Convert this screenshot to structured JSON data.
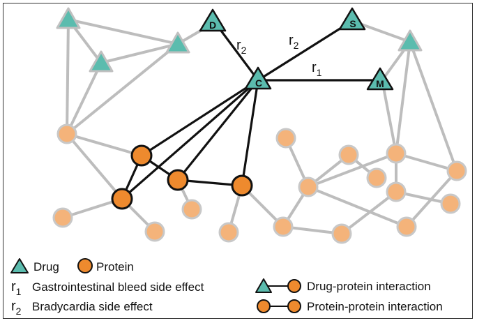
{
  "colors": {
    "drug_fill": "#5bbcae",
    "protein_fill_highlight": "#ee8a2e",
    "protein_fill_muted": "#f4b37a",
    "edge_muted": "#bdbdbd",
    "edge_highlight": "#111111"
  },
  "graph": {
    "drug_labels": {
      "D": "D",
      "S": "S",
      "C": "C",
      "M": "M"
    },
    "edge_labels": {
      "dc": {
        "main": "r",
        "sub": "2"
      },
      "sc": {
        "main": "r",
        "sub": "2"
      },
      "cm": {
        "main": "r",
        "sub": "1"
      }
    }
  },
  "legend": {
    "drug": "Drug",
    "protein": "Protein",
    "r1_main": "r",
    "r1_sub": "1",
    "r1_text": "Gastrointestinal bleed side effect",
    "r2_main": "r",
    "r2_sub": "2",
    "r2_text": "Bradycardia side effect",
    "dpi": "Drug-protein interaction",
    "ppi": "Protein-protein interaction"
  }
}
